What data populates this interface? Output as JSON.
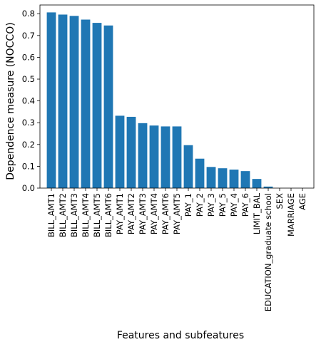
{
  "chart_data": {
    "type": "bar",
    "title": "",
    "xlabel": "Features and subfeatures",
    "ylabel": "Dependence measure (NOCCO)",
    "ylim": [
      0,
      0.84
    ],
    "yticks": [
      0.0,
      0.1,
      0.2,
      0.3,
      0.4,
      0.5,
      0.6,
      0.7,
      0.8
    ],
    "ytick_labels": [
      "0.0",
      "0.1",
      "0.2",
      "0.3",
      "0.4",
      "0.5",
      "0.6",
      "0.7",
      "0.8"
    ],
    "grid": false,
    "legend": "none",
    "bar_color": "#1f77b4",
    "categories": [
      "BILL_AMT1",
      "BILL_AMT2",
      "BILL_AMT3",
      "BILL_AMT4",
      "BILL_AMT5",
      "BILL_AMT6",
      "PAY_AMT1",
      "PAY_AMT2",
      "PAY_AMT3",
      "PAY_AMT4",
      "PAY_AMT6",
      "PAY_AMT5",
      "PAY_1",
      "PAY_2",
      "PAY_3",
      "PAY_5",
      "PAY_4",
      "PAY_6",
      "LIMIT_BAL",
      "EDUCATION_graduate school",
      "SEX",
      "MARRIAGE",
      "AGE"
    ],
    "values": [
      0.806,
      0.796,
      0.79,
      0.773,
      0.758,
      0.746,
      0.332,
      0.327,
      0.298,
      0.287,
      0.283,
      0.283,
      0.197,
      0.135,
      0.097,
      0.091,
      0.085,
      0.078,
      0.042,
      0.007,
      0.0,
      0.0,
      0.0
    ]
  }
}
